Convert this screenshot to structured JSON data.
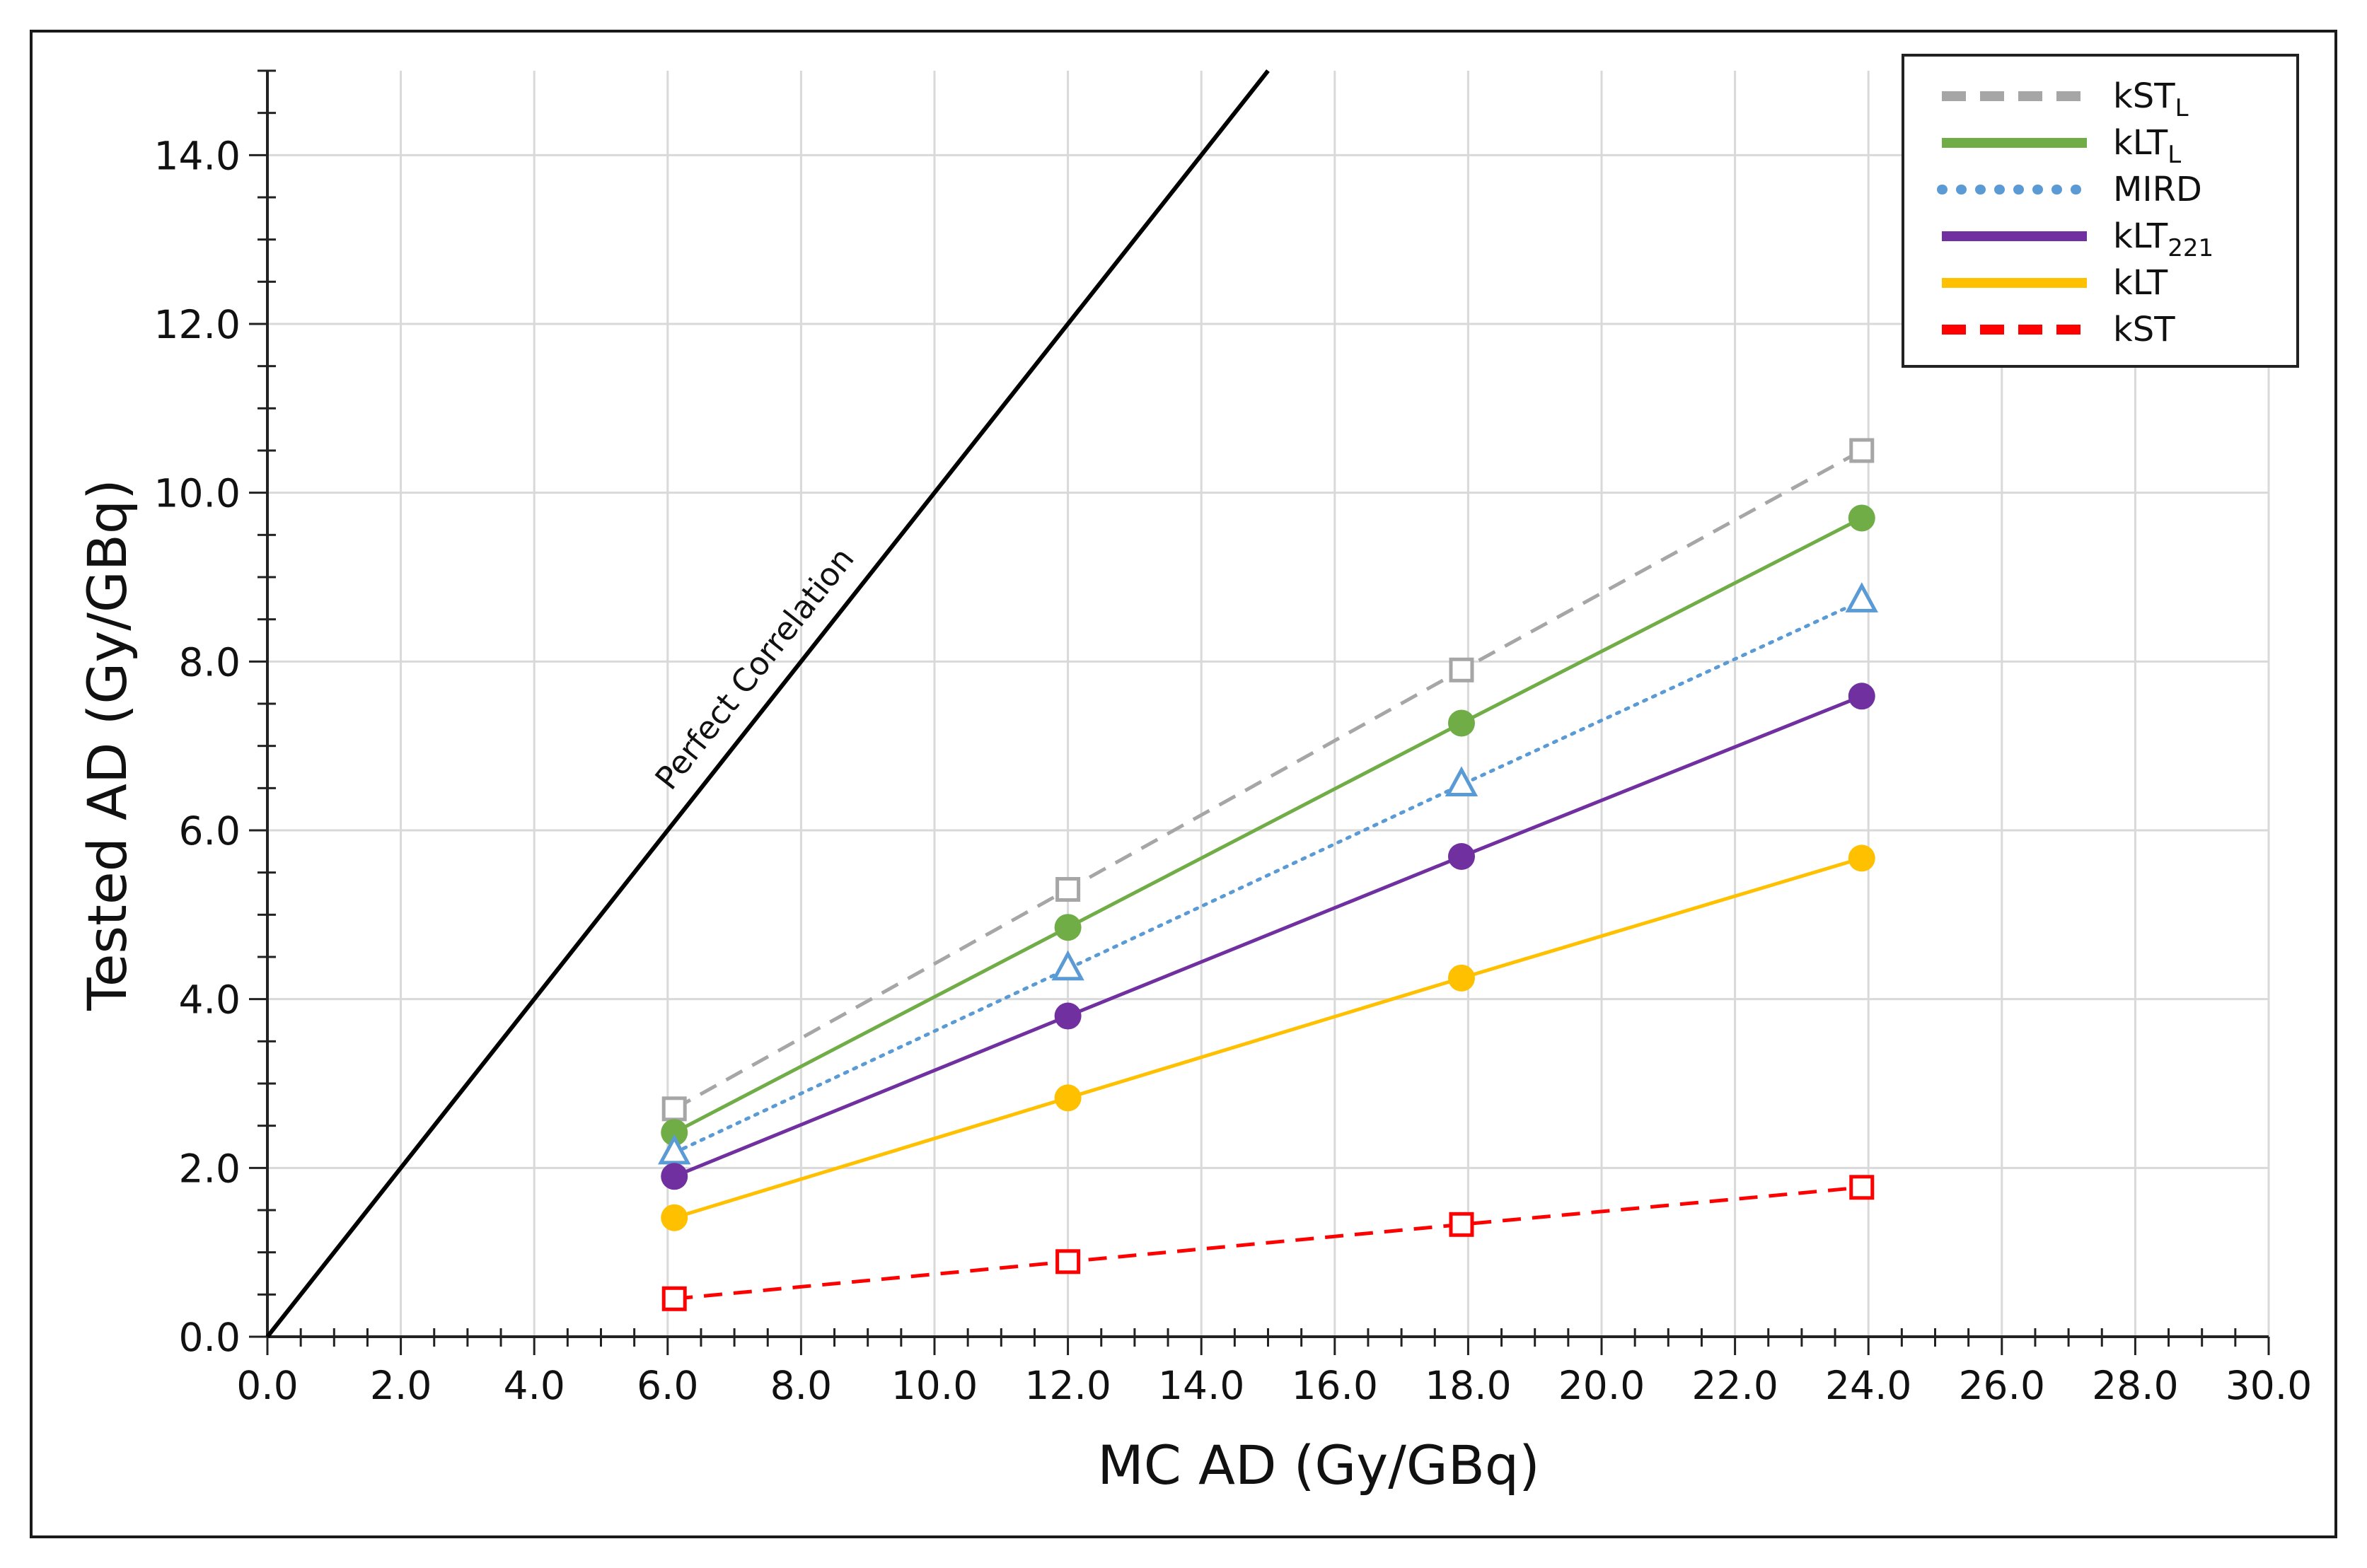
{
  "chart_data": {
    "type": "line",
    "title": "",
    "xlabel": "MC AD (Gy/GBq)",
    "ylabel": "Tested AD (Gy/GBq)",
    "xlim": [
      0,
      30
    ],
    "ylim": [
      0,
      15
    ],
    "xticks": [
      0,
      2,
      4,
      6,
      8,
      10,
      12,
      14,
      16,
      18,
      20,
      22,
      24,
      26,
      28,
      30
    ],
    "yticks": [
      0,
      2,
      4,
      6,
      8,
      10,
      12,
      14
    ],
    "xtick_labels": [
      "0.0",
      "2.0",
      "4.0",
      "6.0",
      "8.0",
      "10.0",
      "12.0",
      "14.0",
      "16.0",
      "18.0",
      "20.0",
      "22.0",
      "24.0",
      "26.0",
      "28.0",
      "30.0"
    ],
    "ytick_labels": [
      "0.0",
      "2.0",
      "4.0",
      "6.0",
      "8.0",
      "10.0",
      "12.0",
      "14.0"
    ],
    "grid": true,
    "legend_position": "top-right",
    "reference_line": {
      "label": "Perfect Correlation",
      "x": [
        0,
        15
      ],
      "y": [
        0,
        15
      ],
      "color": "#000000"
    },
    "x": [
      6.1,
      12.0,
      17.9,
      23.9
    ],
    "series": [
      {
        "name": "kST",
        "subscript": "L",
        "values": [
          2.7,
          5.3,
          7.9,
          10.5
        ],
        "color": "#a6a6a6",
        "style": "dashed",
        "marker": "square"
      },
      {
        "name": "kLT",
        "subscript": "L",
        "values": [
          2.42,
          4.85,
          7.27,
          9.7
        ],
        "color": "#70ad47",
        "style": "solid",
        "marker": "circle"
      },
      {
        "name": "MIRD",
        "subscript": "",
        "values": [
          2.18,
          4.36,
          6.54,
          8.72
        ],
        "color": "#5b9bd5",
        "style": "dotted",
        "marker": "triangle"
      },
      {
        "name": "kLT",
        "subscript": "221",
        "values": [
          1.9,
          3.8,
          5.69,
          7.59
        ],
        "color": "#7030a0",
        "style": "solid",
        "marker": "circle"
      },
      {
        "name": "kLT",
        "subscript": "",
        "values": [
          1.41,
          2.83,
          4.25,
          5.67
        ],
        "color": "#ffc000",
        "style": "solid",
        "marker": "circle"
      },
      {
        "name": "kST",
        "subscript": "",
        "values": [
          0.45,
          0.89,
          1.33,
          1.77
        ],
        "color": "#ff0000",
        "style": "dashed",
        "marker": "square"
      }
    ]
  }
}
